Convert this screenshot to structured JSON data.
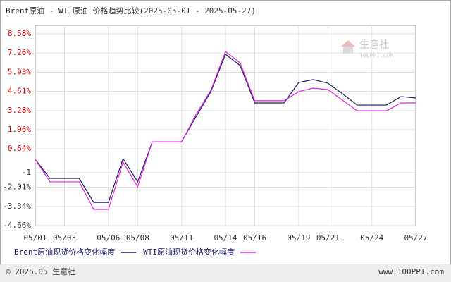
{
  "chart_data": {
    "type": "line",
    "title": "Brent原油 - WTI原油 价格趋势比较(2025-05-01 - 2025-05-27)",
    "categories": [
      "05/01",
      null,
      "05/03",
      null,
      null,
      "05/06",
      null,
      "05/08",
      null,
      null,
      "05/11",
      null,
      null,
      "05/14",
      null,
      "05/16",
      null,
      null,
      "05/19",
      null,
      "05/21",
      null,
      null,
      "05/24",
      null,
      null,
      "05/27"
    ],
    "series": [
      {
        "name": "Brent原油现货价格变化幅度",
        "color": "#1a1a5e",
        "values": [
          -0.09,
          -1.4,
          -1.4,
          -1.4,
          -3.06,
          -3.06,
          -0.04,
          -1.64,
          1.13,
          1.13,
          1.13,
          2.88,
          4.59,
          7.17,
          6.39,
          3.81,
          3.81,
          3.81,
          5.22,
          5.42,
          5.17,
          4.44,
          3.66,
          3.66,
          3.66,
          4.25,
          4.15
        ]
      },
      {
        "name": "WTI原油现货价格变化幅度",
        "color": "#e020e0",
        "values": [
          -0.09,
          -1.64,
          -1.64,
          -1.64,
          -3.54,
          -3.54,
          -0.28,
          -1.98,
          1.13,
          1.13,
          1.13,
          3.03,
          4.69,
          7.36,
          6.58,
          3.96,
          3.96,
          3.96,
          4.59,
          4.83,
          4.73,
          4.0,
          3.27,
          3.27,
          3.27,
          3.81,
          3.81
        ]
      }
    ],
    "ylim": [
      -4.66,
      8.58
    ],
    "yticks": [
      {
        "value": -4.66,
        "label": "-4.66%"
      },
      {
        "value": -3.34,
        "label": "-3.34%"
      },
      {
        "value": -2.01,
        "label": "-2.01%"
      },
      -1,
      {
        "value": 0.64,
        "label": "0.64%"
      },
      {
        "value": 1.96,
        "label": "1.96%"
      },
      {
        "value": 3.28,
        "label": "3.28%"
      },
      {
        "value": 4.61,
        "label": "4.61%"
      },
      {
        "value": 5.93,
        "label": "5.93%"
      },
      {
        "value": 7.26,
        "label": "7.26%"
      },
      {
        "value": 8.58,
        "label": "8.58%"
      }
    ],
    "grid": true,
    "watermark": {
      "name": "生意社",
      "site": "100PPI.COM"
    },
    "footer": {
      "left": "© 2025.05 生意社",
      "right": "www.100PPI.com"
    }
  }
}
